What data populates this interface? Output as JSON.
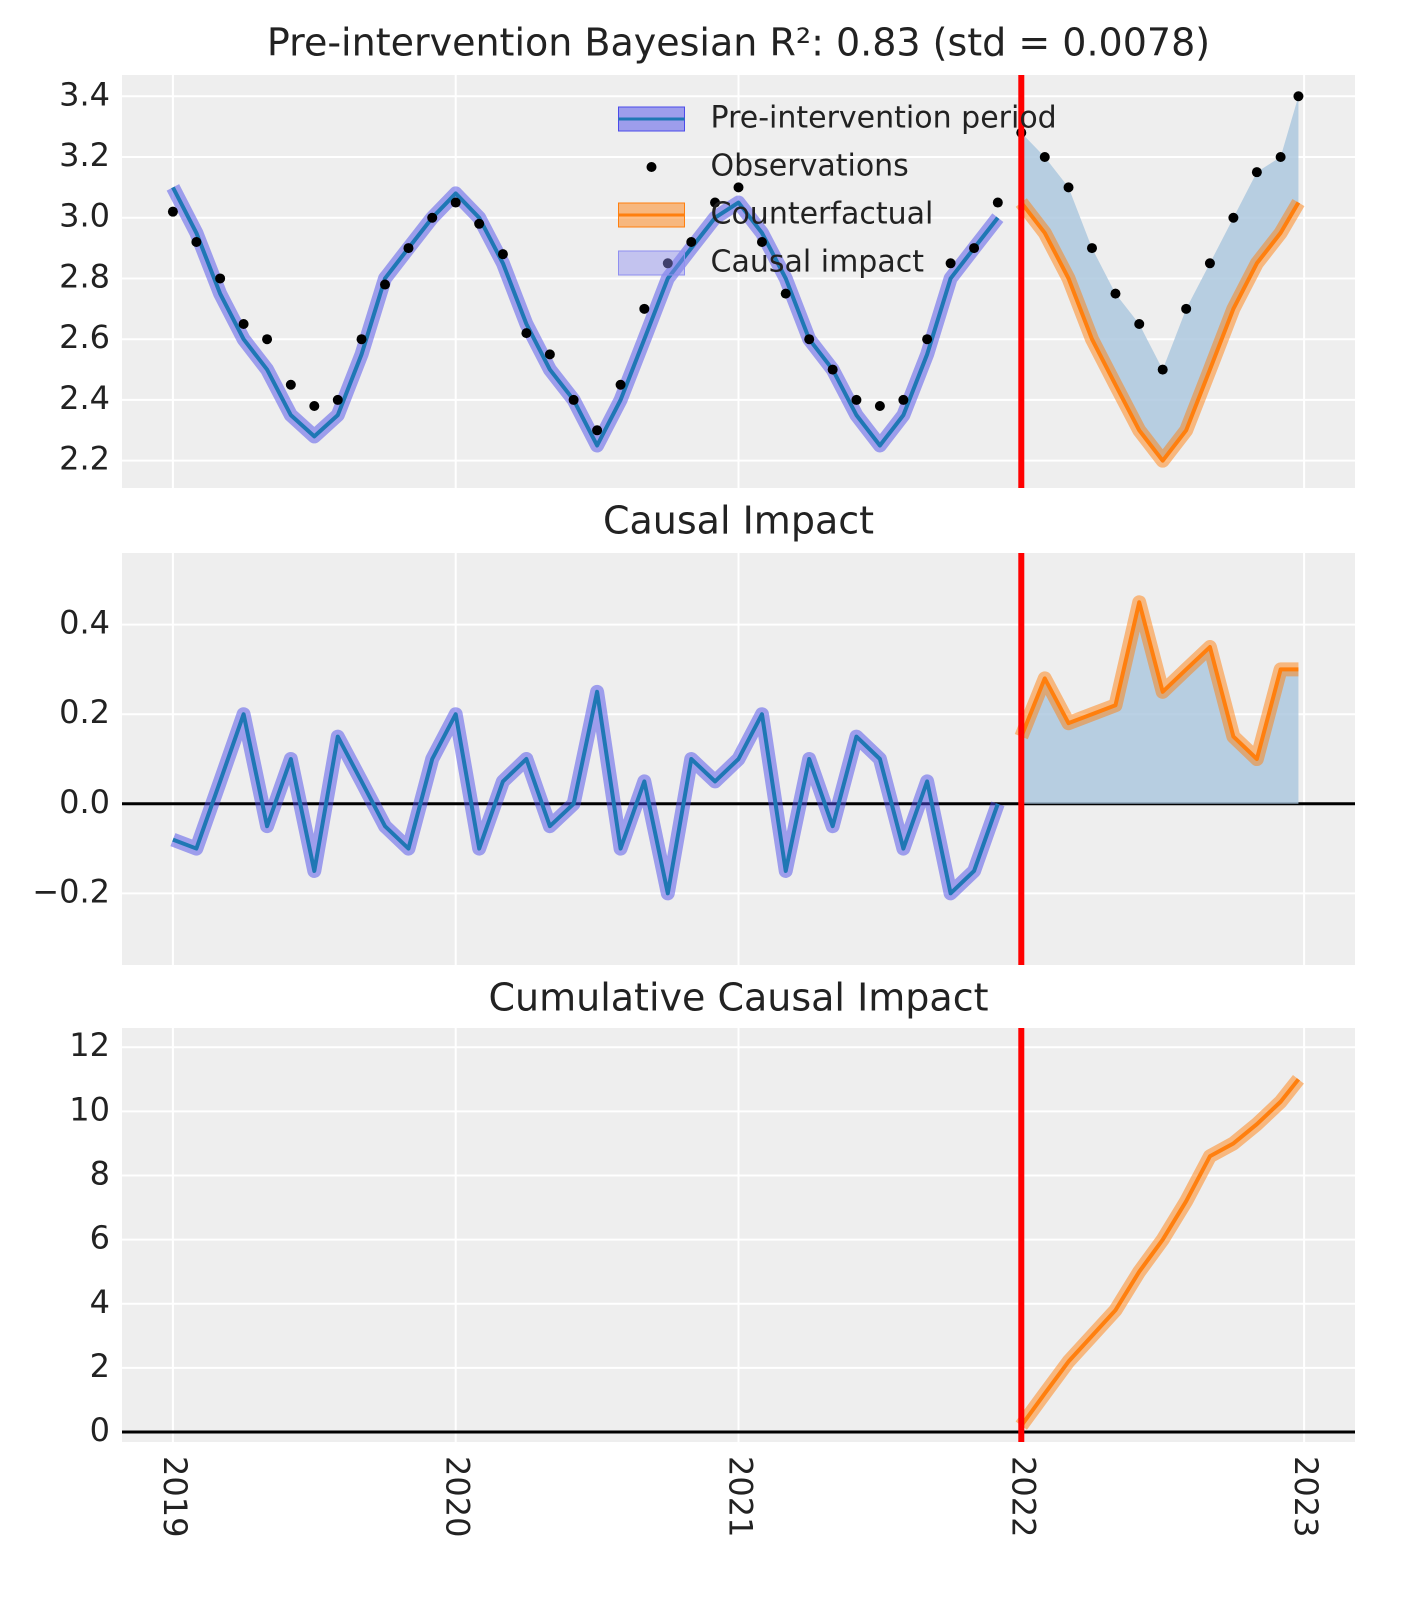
{
  "chart_data": [
    {
      "type": "line",
      "title": "Pre-intervention Bayesian R²: 0.83 (std = 0.0078)",
      "x": [
        2019,
        2019.083,
        2019.167,
        2019.25,
        2019.333,
        2019.417,
        2019.5,
        2019.583,
        2019.667,
        2019.75,
        2019.833,
        2019.917,
        2020,
        2020.083,
        2020.167,
        2020.25,
        2020.333,
        2020.417,
        2020.5,
        2020.583,
        2020.667,
        2020.75,
        2020.833,
        2020.917,
        2021,
        2021.083,
        2021.167,
        2021.25,
        2021.333,
        2021.417,
        2021.5,
        2021.583,
        2021.667,
        2021.75,
        2021.833,
        2021.917,
        2022,
        2022.083,
        2022.167,
        2022.25,
        2022.333,
        2022.417,
        2022.5,
        2022.583,
        2022.667,
        2022.75,
        2022.833,
        2022.917,
        2022.98
      ],
      "series": [
        {
          "name": "Pre-intervention period",
          "style": "line",
          "color": "#1f77b4",
          "band_color": "#4b4bea",
          "values": [
            3.1,
            2.95,
            2.75,
            2.6,
            2.5,
            2.35,
            2.28,
            2.35,
            2.55,
            2.8,
            2.9,
            3.0,
            3.08,
            3.0,
            2.85,
            2.65,
            2.5,
            2.4,
            2.25,
            2.4,
            2.6,
            2.8,
            2.9,
            3.0,
            3.05,
            2.95,
            2.8,
            2.6,
            2.5,
            2.35,
            2.25,
            2.35,
            2.55,
            2.8,
            2.9,
            3.0,
            null,
            null,
            null,
            null,
            null,
            null,
            null,
            null,
            null,
            null,
            null,
            null,
            null
          ]
        },
        {
          "name": "Observations",
          "style": "scatter",
          "color": "#000000",
          "values": [
            3.02,
            2.92,
            2.8,
            2.65,
            2.6,
            2.45,
            2.38,
            2.4,
            2.6,
            2.78,
            2.9,
            3.0,
            3.05,
            2.98,
            2.88,
            2.62,
            2.55,
            2.4,
            2.3,
            2.45,
            2.7,
            2.85,
            2.92,
            3.05,
            3.1,
            2.92,
            2.75,
            2.6,
            2.5,
            2.4,
            2.38,
            2.4,
            2.6,
            2.85,
            2.9,
            3.05,
            3.28,
            3.2,
            3.1,
            2.9,
            2.75,
            2.65,
            2.5,
            2.7,
            2.85,
            3.0,
            3.15,
            3.2,
            3.4
          ]
        },
        {
          "name": "Counterfactual",
          "style": "line",
          "color": "#ff7f0e",
          "band_color": "#ff7f0e",
          "values": [
            null,
            null,
            null,
            null,
            null,
            null,
            null,
            null,
            null,
            null,
            null,
            null,
            null,
            null,
            null,
            null,
            null,
            null,
            null,
            null,
            null,
            null,
            null,
            null,
            null,
            null,
            null,
            null,
            null,
            null,
            null,
            null,
            null,
            null,
            null,
            null,
            3.05,
            2.95,
            2.8,
            2.6,
            2.45,
            2.3,
            2.2,
            2.3,
            2.5,
            2.7,
            2.85,
            2.95,
            3.05
          ]
        },
        {
          "name": "Causal impact",
          "style": "fill",
          "color": "#a9c5dd"
        }
      ],
      "legend": "upper center",
      "treatment_time": 2022,
      "xlim": [
        2018.82,
        2023.18
      ],
      "xticks": [
        2019,
        2020,
        2021,
        2022,
        2023
      ],
      "ylim": [
        2.11,
        3.47
      ],
      "yticks": [
        2.2,
        2.4,
        2.6,
        2.8,
        {
          "value": 3,
          "label": "3.0"
        },
        3.2,
        3.4
      ],
      "grid": true
    },
    {
      "type": "line",
      "title": "Causal Impact",
      "x": [
        2019,
        2019.083,
        2019.167,
        2019.25,
        2019.333,
        2019.417,
        2019.5,
        2019.583,
        2019.667,
        2019.75,
        2019.833,
        2019.917,
        2020,
        2020.083,
        2020.167,
        2020.25,
        2020.333,
        2020.417,
        2020.5,
        2020.583,
        2020.667,
        2020.75,
        2020.833,
        2020.917,
        2021,
        2021.083,
        2021.167,
        2021.25,
        2021.333,
        2021.417,
        2021.5,
        2021.583,
        2021.667,
        2021.75,
        2021.833,
        2021.917,
        2022,
        2022.083,
        2022.167,
        2022.25,
        2022.333,
        2022.417,
        2022.5,
        2022.583,
        2022.667,
        2022.75,
        2022.833,
        2022.917,
        2022.98
      ],
      "series": [
        {
          "style": "line",
          "color": "#1f77b4",
          "band_color": "#4b4bea",
          "values": [
            -0.08,
            -0.1,
            0.05,
            0.2,
            -0.05,
            0.1,
            -0.15,
            0.15,
            0.05,
            -0.05,
            -0.1,
            0.1,
            0.2,
            -0.1,
            0.05,
            0.1,
            -0.05,
            0.0,
            0.25,
            -0.1,
            0.05,
            -0.2,
            0.1,
            0.05,
            0.1,
            0.2,
            -0.15,
            0.1,
            -0.05,
            0.15,
            0.1,
            -0.1,
            0.05,
            -0.2,
            -0.15,
            0.0,
            null,
            null,
            null,
            null,
            null,
            null,
            null,
            null,
            null,
            null,
            null,
            null,
            null
          ]
        },
        {
          "style": "line",
          "color": "#ff7f0e",
          "band_color": "#ff7f0e",
          "fill": "#a9c5dd",
          "values": [
            null,
            null,
            null,
            null,
            null,
            null,
            null,
            null,
            null,
            null,
            null,
            null,
            null,
            null,
            null,
            null,
            null,
            null,
            null,
            null,
            null,
            null,
            null,
            null,
            null,
            null,
            null,
            null,
            null,
            null,
            null,
            null,
            null,
            null,
            null,
            null,
            0.15,
            0.28,
            0.18,
            0.2,
            0.22,
            0.45,
            0.25,
            0.3,
            0.35,
            0.15,
            0.1,
            0.3,
            0.3
          ]
        }
      ],
      "treatment_time": 2022,
      "zero_line": true,
      "xlim": [
        2018.82,
        2023.18
      ],
      "xticks": [
        2019,
        2020,
        2021,
        2022,
        2023
      ],
      "ylim": [
        -0.36,
        0.56
      ],
      "yticks": [
        {
          "value": -0.2,
          "label": "−0.2"
        },
        {
          "value": 0,
          "label": "0.0"
        },
        0.2,
        0.4
      ],
      "grid": true
    },
    {
      "type": "line",
      "title": "Cumulative Causal Impact",
      "x": [
        2022,
        2022.083,
        2022.167,
        2022.25,
        2022.333,
        2022.417,
        2022.5,
        2022.583,
        2022.667,
        2022.75,
        2022.833,
        2022.917,
        2022.98
      ],
      "series": [
        {
          "style": "line",
          "color": "#ff7f0e",
          "band_color": "#ff7f0e",
          "values": [
            0.2,
            1.2,
            2.2,
            3.0,
            3.8,
            5.0,
            6.0,
            7.2,
            8.6,
            9.0,
            9.6,
            10.3,
            11.0
          ]
        }
      ],
      "treatment_time": 2022,
      "zero_line": true,
      "xtick_labels": true,
      "xlim": [
        2018.82,
        2023.18
      ],
      "xticks": [
        2019,
        2020,
        2021,
        2022,
        2023
      ],
      "ylim": [
        -0.31,
        12.6
      ],
      "yticks": [
        0,
        2,
        4,
        6,
        8,
        10,
        12
      ],
      "grid": true
    }
  ]
}
